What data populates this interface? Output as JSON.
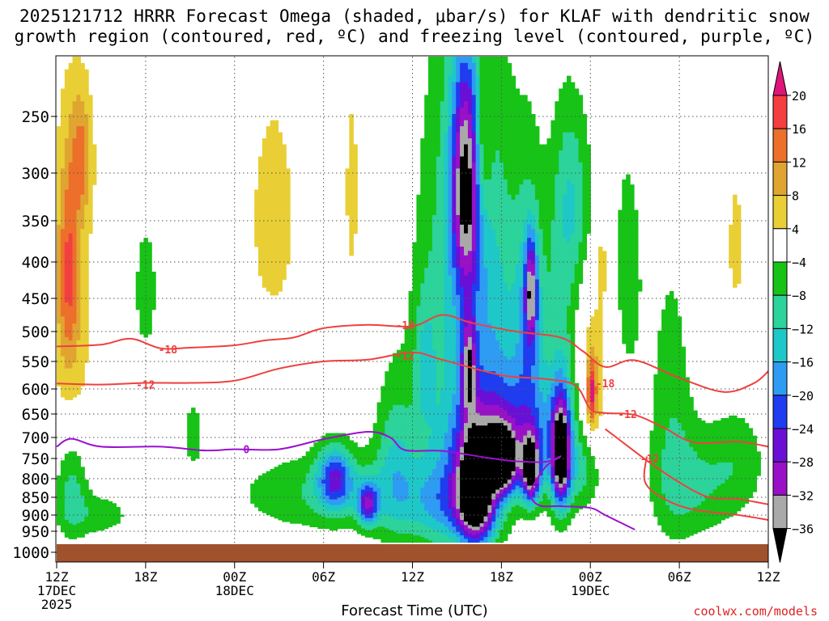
{
  "title_line1": "2025121712 HRRR Forecast Omega (shaded, μbar/s) for KLAF with dendritic snow",
  "title_line2": "growth region (contoured, red, ºC) and freezing level (contoured, purple, ºC)",
  "credit": "coolwx.com/models",
  "chart_data": {
    "type": "heatmap",
    "title": "2025121712 HRRR Forecast Omega (shaded, μbar/s) for KLAF with dendritic snow growth region (contoured, red, ºC) and freezing level (contoured, purple, ºC)",
    "xlabel": "Forecast Time (UTC)",
    "ylabel": "",
    "x_range_hours": [
      0,
      48
    ],
    "y_range_mb": [
      200,
      1000
    ],
    "y_ticks": [
      250,
      300,
      350,
      400,
      450,
      500,
      550,
      600,
      650,
      700,
      750,
      800,
      850,
      900,
      950,
      1000
    ],
    "x_ticks": [
      {
        "hour": 0,
        "l1": "12Z",
        "l2": "17DEC",
        "l3": "2025"
      },
      {
        "hour": 6,
        "l1": "18Z",
        "l2": "",
        "l3": ""
      },
      {
        "hour": 12,
        "l1": "00Z",
        "l2": "18DEC",
        "l3": ""
      },
      {
        "hour": 18,
        "l1": "06Z",
        "l2": "",
        "l3": ""
      },
      {
        "hour": 24,
        "l1": "12Z",
        "l2": "",
        "l3": ""
      },
      {
        "hour": 30,
        "l1": "18Z",
        "l2": "",
        "l3": ""
      },
      {
        "hour": 36,
        "l1": "00Z",
        "l2": "19DEC",
        "l3": ""
      },
      {
        "hour": 42,
        "l1": "06Z",
        "l2": "",
        "l3": ""
      },
      {
        "hour": 48,
        "l1": "12Z",
        "l2": "",
        "l3": ""
      }
    ],
    "colorbar": {
      "labels": [
        "20",
        "16",
        "12",
        "8",
        "4",
        "−4",
        "−8",
        "−12",
        "−16",
        "−20",
        "−24",
        "−28",
        "−32",
        "−36"
      ],
      "bins": [
        {
          "color": "#f33f3f"
        },
        {
          "color": "#ec6f2a"
        },
        {
          "color": "#e0a531"
        },
        {
          "color": "#e9cf35"
        },
        {
          "color": "#ffffff"
        },
        {
          "color": "#16c316"
        },
        {
          "color": "#2cd39a"
        },
        {
          "color": "#1ec8c8"
        },
        {
          "color": "#2f9cf3"
        },
        {
          "color": "#1f3cf0"
        },
        {
          "color": "#6a10d6"
        },
        {
          "color": "#9a10c8"
        },
        {
          "color": "#a9a9a9"
        }
      ],
      "top_arrow_color": "#e0157a",
      "bottom_arrow_color": "#000000"
    },
    "omega_blobs": [
      {
        "t": 1.0,
        "p": 470,
        "rt": 1.7,
        "rp": 290,
        "v": 6
      },
      {
        "t": 0.8,
        "p": 410,
        "rt": 0.7,
        "rp": 130,
        "v": 12
      },
      {
        "t": 1.7,
        "p": 285,
        "rt": 0.7,
        "rp": 60,
        "v": 10
      },
      {
        "t": 1.0,
        "p": 820,
        "rt": 1.1,
        "rp": 140,
        "v": -10
      },
      {
        "t": 2.8,
        "p": 900,
        "rt": 2.5,
        "rp": 70,
        "v": -6
      },
      {
        "t": 6.0,
        "p": 440,
        "rt": 0.9,
        "rp": 110,
        "v": -6
      },
      {
        "t": 9.2,
        "p": 690,
        "rt": 0.9,
        "rp": 110,
        "v": -5
      },
      {
        "t": 14.6,
        "p": 350,
        "rt": 1.9,
        "rp": 150,
        "v": 6
      },
      {
        "t": 19.9,
        "p": 320,
        "rt": 0.5,
        "rp": 110,
        "v": 6
      },
      {
        "t": 18.0,
        "p": 840,
        "rt": 6.0,
        "rp": 110,
        "v": -8
      },
      {
        "t": 18.8,
        "p": 800,
        "rt": 1.2,
        "rp": 80,
        "v": -20
      },
      {
        "t": 21.0,
        "p": 870,
        "rt": 0.7,
        "rp": 60,
        "v": -22
      },
      {
        "t": 22.8,
        "p": 760,
        "rt": 1.4,
        "rp": 200,
        "v": -10
      },
      {
        "t": 24.8,
        "p": 560,
        "rt": 0.7,
        "rp": 120,
        "v": -8
      },
      {
        "t": 27.0,
        "p": 470,
        "rt": 2.7,
        "rp": 330,
        "v": -12
      },
      {
        "t": 28.3,
        "p": 840,
        "rt": 1.2,
        "rp": 140,
        "v": -40
      },
      {
        "t": 26.5,
        "p": 870,
        "rt": 3.0,
        "rp": 130,
        "v": -16
      },
      {
        "t": 27.6,
        "p": 310,
        "rt": 1.0,
        "rp": 120,
        "v": -30
      },
      {
        "t": 27.8,
        "p": 560,
        "rt": 0.5,
        "rp": 90,
        "v": -22
      },
      {
        "t": 28.7,
        "p": 280,
        "rt": 0.6,
        "rp": 70,
        "v": 10
      },
      {
        "t": 29.8,
        "p": 530,
        "rt": 1.8,
        "rp": 300,
        "v": -10
      },
      {
        "t": 30.1,
        "p": 700,
        "rt": 3.5,
        "rp": 120,
        "v": -18
      },
      {
        "t": 30.1,
        "p": 760,
        "rt": 0.9,
        "rp": 70,
        "v": -36
      },
      {
        "t": 31.9,
        "p": 500,
        "rt": 1.0,
        "rp": 200,
        "v": -14
      },
      {
        "t": 32.0,
        "p": 780,
        "rt": 0.6,
        "rp": 80,
        "v": -36
      },
      {
        "t": 32.0,
        "p": 440,
        "rt": 0.4,
        "rp": 70,
        "v": -22
      },
      {
        "t": 34.0,
        "p": 600,
        "rt": 1.3,
        "rp": 280,
        "v": -10
      },
      {
        "t": 34.0,
        "p": 740,
        "rt": 0.6,
        "rp": 120,
        "v": -38
      },
      {
        "t": 34.8,
        "p": 330,
        "rt": 1.3,
        "rp": 100,
        "v": -10
      },
      {
        "t": 35.5,
        "p": 780,
        "rt": 1.3,
        "rp": 100,
        "v": -8
      },
      {
        "t": 36.2,
        "p": 580,
        "rt": 1.1,
        "rp": 160,
        "v": 8
      },
      {
        "t": 36.1,
        "p": 610,
        "rt": 0.3,
        "rp": 60,
        "v": 16
      },
      {
        "t": 36.8,
        "p": 400,
        "rt": 0.4,
        "rp": 60,
        "v": 6
      },
      {
        "t": 38.5,
        "p": 420,
        "rt": 1.5,
        "rp": 250,
        "v": -5
      },
      {
        "t": 41.5,
        "p": 640,
        "rt": 1.4,
        "rp": 300,
        "v": -6
      },
      {
        "t": 42.8,
        "p": 820,
        "rt": 2.6,
        "rp": 150,
        "v": -8
      },
      {
        "t": 45.8,
        "p": 380,
        "rt": 0.6,
        "rp": 90,
        "v": 6
      },
      {
        "t": 46.0,
        "p": 760,
        "rt": 2.0,
        "rp": 140,
        "v": -6
      }
    ],
    "contours": [
      {
        "name": "-18",
        "color": "#ef4040",
        "label_at": [
          [
            7.5,
            530
          ],
          [
            23.5,
            490
          ],
          [
            37.0,
            590
          ]
        ],
        "points": [
          [
            0,
            525
          ],
          [
            3,
            522
          ],
          [
            5,
            512
          ],
          [
            7,
            528
          ],
          [
            9,
            527
          ],
          [
            12,
            523
          ],
          [
            14,
            515
          ],
          [
            16,
            510
          ],
          [
            18,
            495
          ],
          [
            21,
            490
          ],
          [
            24,
            492
          ],
          [
            26,
            475
          ],
          [
            28,
            487
          ],
          [
            31,
            500
          ],
          [
            34,
            510
          ],
          [
            35.5,
            533
          ],
          [
            37,
            560
          ],
          [
            39,
            548
          ],
          [
            42,
            580
          ],
          [
            45,
            606
          ],
          [
            47,
            590
          ],
          [
            48,
            568
          ]
        ]
      },
      {
        "name": "-12",
        "color": "#ef4040",
        "label_at": [
          [
            6.0,
            592
          ],
          [
            23.5,
            540
          ],
          [
            38.5,
            650
          ],
          [
            40.0,
            750
          ]
        ],
        "points": [
          [
            0,
            590
          ],
          [
            3,
            592
          ],
          [
            6,
            589
          ],
          [
            9,
            589
          ],
          [
            12,
            585
          ],
          [
            15,
            563
          ],
          [
            18,
            550
          ],
          [
            21,
            547
          ],
          [
            24,
            535
          ],
          [
            26,
            547
          ],
          [
            30,
            575
          ],
          [
            33,
            582
          ],
          [
            35,
            594
          ],
          [
            36,
            640
          ],
          [
            37,
            648
          ],
          [
            39,
            652
          ],
          [
            41,
            680
          ],
          [
            43,
            712
          ],
          [
            46,
            710
          ],
          [
            48,
            722
          ]
        ]
      },
      {
        "name": "-12b",
        "color": "#ef4040",
        "label_at": [],
        "points": [
          [
            39.8,
            745
          ],
          [
            39.7,
            810
          ],
          [
            41,
            855
          ],
          [
            43,
            885
          ],
          [
            46,
            900
          ],
          [
            48,
            915
          ]
        ]
      },
      {
        "name": "-12c",
        "color": "#ef4040",
        "label_at": [],
        "points": [
          [
            37,
            682
          ],
          [
            38.5,
            720
          ],
          [
            40,
            760
          ],
          [
            42,
            810
          ],
          [
            44,
            850
          ],
          [
            46,
            855
          ],
          [
            48,
            870
          ]
        ]
      },
      {
        "name": "0",
        "color": "#9a10d0",
        "label_at": [
          [
            12.8,
            728
          ]
        ],
        "points": [
          [
            0,
            722
          ],
          [
            1,
            703
          ],
          [
            3,
            722
          ],
          [
            7,
            722
          ],
          [
            10,
            731
          ],
          [
            12,
            728
          ],
          [
            15,
            728
          ],
          [
            18,
            704
          ],
          [
            21,
            688
          ],
          [
            22.5,
            700
          ],
          [
            23.5,
            730
          ],
          [
            26,
            732
          ],
          [
            29,
            748
          ],
          [
            31,
            757
          ],
          [
            33,
            758
          ],
          [
            34,
            745
          ],
          [
            33,
            770
          ],
          [
            32,
            835
          ],
          [
            32.5,
            872
          ],
          [
            34,
            875
          ],
          [
            36,
            880
          ],
          [
            37,
            900
          ],
          [
            39,
            945
          ]
        ]
      }
    ]
  }
}
